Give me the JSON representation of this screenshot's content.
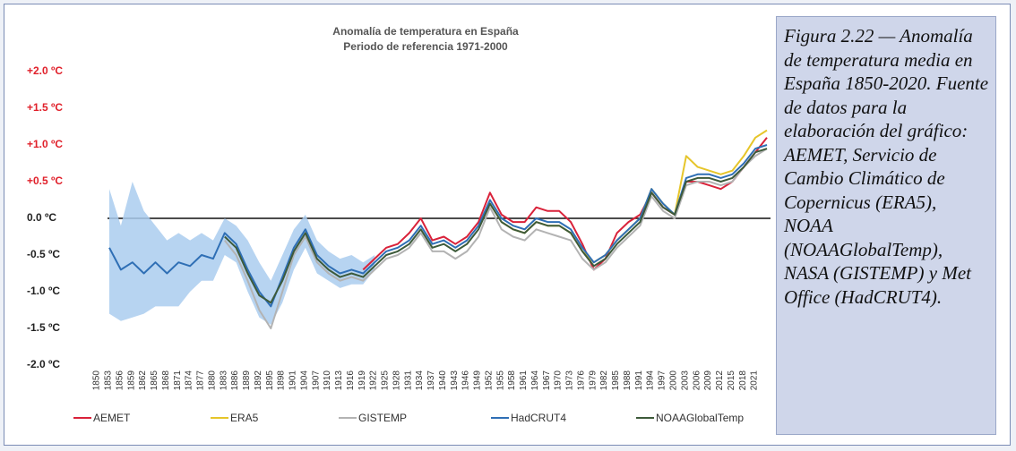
{
  "chart_data": {
    "type": "line",
    "title": "Anomalía de temperatura en España",
    "subtitle": "Periodo de referencia 1971-2000",
    "x": [
      1850,
      1853,
      1856,
      1859,
      1862,
      1865,
      1868,
      1871,
      1874,
      1877,
      1880,
      1883,
      1886,
      1889,
      1892,
      1895,
      1898,
      1901,
      1904,
      1907,
      1910,
      1913,
      1916,
      1919,
      1922,
      1925,
      1928,
      1931,
      1934,
      1937,
      1940,
      1943,
      1946,
      1949,
      1952,
      1955,
      1958,
      1961,
      1964,
      1967,
      1970,
      1973,
      1976,
      1979,
      1982,
      1985,
      1988,
      1991,
      1994,
      1997,
      2000,
      2003,
      2006,
      2009,
      2012,
      2015,
      2018,
      2021
    ],
    "xlim": [
      1850,
      2021
    ],
    "xticks": [
      1850,
      1853,
      1856,
      1859,
      1862,
      1865,
      1868,
      1871,
      1874,
      1877,
      1880,
      1883,
      1886,
      1889,
      1892,
      1895,
      1898,
      1901,
      1904,
      1907,
      1910,
      1913,
      1916,
      1919,
      1922,
      1925,
      1928,
      1931,
      1934,
      1937,
      1940,
      1943,
      1946,
      1949,
      1952,
      1955,
      1958,
      1961,
      1964,
      1967,
      1970,
      1973,
      1976,
      1979,
      1982,
      1985,
      1988,
      1991,
      1994,
      1997,
      2000,
      2003,
      2006,
      2009,
      2012,
      2015,
      2018,
      2021
    ],
    "ylim": [
      -2,
      2
    ],
    "yticks": [
      {
        "value": 2,
        "label": "+2.0 ºC"
      },
      {
        "value": 1.5,
        "label": "+1.5 ºC"
      },
      {
        "value": 1,
        "label": "+1.0 ºC"
      },
      {
        "value": 0.5,
        "label": "+0.5 ºC"
      },
      {
        "value": 0,
        "label": "0.0 ºC"
      },
      {
        "value": -0.5,
        "label": "-0.5 ºC"
      },
      {
        "value": -1,
        "label": "-1.0 ºC"
      },
      {
        "value": -1.5,
        "label": "-1.5 ºC"
      },
      {
        "value": -2,
        "label": "-2.0 ºC"
      }
    ],
    "zero_line": true,
    "band": {
      "color": "#aacdee",
      "x": [
        1850,
        1853,
        1856,
        1859,
        1862,
        1865,
        1868,
        1871,
        1874,
        1877,
        1880,
        1883,
        1886,
        1889,
        1892,
        1895,
        1898,
        1901,
        1904,
        1907,
        1910,
        1913,
        1916,
        1919
      ],
      "upper": [
        0.4,
        -0.1,
        0.5,
        0.1,
        -0.1,
        -0.3,
        -0.2,
        -0.3,
        -0.2,
        -0.3,
        0.0,
        -0.1,
        -0.3,
        -0.6,
        -0.85,
        -0.5,
        -0.15,
        0.05,
        -0.3,
        -0.45,
        -0.55,
        -0.5,
        -0.6,
        -0.5
      ],
      "lower": [
        -1.3,
        -1.4,
        -1.35,
        -1.3,
        -1.2,
        -1.2,
        -1.2,
        -1.0,
        -0.85,
        -0.85,
        -0.5,
        -0.6,
        -1.0,
        -1.35,
        -1.45,
        -1.15,
        -0.7,
        -0.4,
        -0.75,
        -0.85,
        -0.95,
        -0.9,
        -0.9,
        -0.7
      ]
    },
    "series": [
      {
        "name": "AEMET",
        "color": "#d9223a",
        "values": [
          null,
          null,
          null,
          null,
          null,
          null,
          null,
          null,
          null,
          null,
          null,
          null,
          null,
          null,
          null,
          null,
          null,
          null,
          null,
          null,
          null,
          null,
          -0.7,
          -0.55,
          -0.4,
          -0.35,
          -0.2,
          0.0,
          -0.3,
          -0.25,
          -0.35,
          -0.25,
          -0.05,
          0.35,
          0.05,
          -0.05,
          -0.05,
          0.15,
          0.1,
          0.1,
          -0.05,
          -0.35,
          -0.7,
          -0.55,
          -0.2,
          -0.05,
          0.05,
          0.35,
          0.15,
          0.05,
          0.5,
          0.5,
          0.45,
          0.4,
          0.5,
          0.7,
          0.9,
          1.1
        ]
      },
      {
        "name": "ERA5",
        "color": "#e6c52a",
        "values": [
          null,
          null,
          null,
          null,
          null,
          null,
          null,
          null,
          null,
          null,
          null,
          null,
          null,
          null,
          null,
          null,
          null,
          null,
          null,
          null,
          null,
          null,
          null,
          null,
          null,
          null,
          null,
          null,
          null,
          null,
          null,
          null,
          null,
          0.2,
          -0.05,
          -0.15,
          -0.2,
          -0.05,
          -0.1,
          -0.1,
          -0.2,
          -0.45,
          -0.6,
          -0.5,
          -0.3,
          -0.15,
          0.0,
          0.4,
          0.2,
          0.05,
          0.85,
          0.7,
          0.65,
          0.6,
          0.65,
          0.85,
          1.1,
          1.2
        ]
      },
      {
        "name": "GISTEMP",
        "color": "#b3b3b3",
        "values": [
          null,
          null,
          null,
          null,
          null,
          null,
          null,
          null,
          null,
          null,
          -0.3,
          -0.5,
          -0.85,
          -1.25,
          -1.5,
          -1.0,
          -0.5,
          -0.25,
          -0.6,
          -0.75,
          -0.85,
          -0.8,
          -0.85,
          -0.7,
          -0.55,
          -0.5,
          -0.4,
          -0.2,
          -0.45,
          -0.45,
          -0.55,
          -0.45,
          -0.25,
          0.15,
          -0.15,
          -0.25,
          -0.3,
          -0.15,
          -0.2,
          -0.25,
          -0.3,
          -0.55,
          -0.7,
          -0.6,
          -0.4,
          -0.25,
          -0.1,
          0.3,
          0.1,
          0.0,
          0.45,
          0.5,
          0.5,
          0.45,
          0.5,
          0.7,
          0.85,
          0.95
        ]
      },
      {
        "name": "HadCRUT4",
        "color": "#2f6fb5",
        "values": [
          -0.4,
          -0.7,
          -0.6,
          -0.75,
          -0.6,
          -0.75,
          -0.6,
          -0.65,
          -0.5,
          -0.55,
          -0.2,
          -0.35,
          -0.7,
          -1.0,
          -1.2,
          -0.8,
          -0.4,
          -0.15,
          -0.5,
          -0.65,
          -0.75,
          -0.7,
          -0.75,
          -0.6,
          -0.45,
          -0.4,
          -0.3,
          -0.1,
          -0.35,
          -0.3,
          -0.4,
          -0.3,
          -0.1,
          0.25,
          0.0,
          -0.1,
          -0.15,
          0.0,
          -0.05,
          -0.05,
          -0.15,
          -0.4,
          -0.6,
          -0.5,
          -0.3,
          -0.15,
          0.0,
          0.4,
          0.2,
          0.05,
          0.55,
          0.6,
          0.6,
          0.55,
          0.6,
          0.75,
          0.95,
          1.0
        ]
      },
      {
        "name": "NOAAGlobalTemp",
        "color": "#3d5a3a",
        "values": [
          null,
          null,
          null,
          null,
          null,
          null,
          null,
          null,
          null,
          null,
          -0.25,
          -0.4,
          -0.75,
          -1.05,
          -1.15,
          -0.85,
          -0.45,
          -0.2,
          -0.55,
          -0.7,
          -0.8,
          -0.75,
          -0.8,
          -0.65,
          -0.5,
          -0.45,
          -0.35,
          -0.15,
          -0.4,
          -0.35,
          -0.45,
          -0.35,
          -0.15,
          0.2,
          -0.05,
          -0.15,
          -0.2,
          -0.05,
          -0.1,
          -0.1,
          -0.2,
          -0.45,
          -0.65,
          -0.55,
          -0.35,
          -0.2,
          -0.05,
          0.35,
          0.15,
          0.05,
          0.5,
          0.55,
          0.55,
          0.5,
          0.55,
          0.7,
          0.9,
          0.95
        ]
      }
    ]
  },
  "caption": "Figura 2.22 — Anomalía de temperatura media en España 1850-2020. Fuente de datos para la elaboración del gráfico: AEMET, Servicio de Cambio Climático de Copernicus (ERA5), NOAA (NOAAGlobalTemp), NASA (GISTEMP) y Met Office (HadCRUT4)."
}
